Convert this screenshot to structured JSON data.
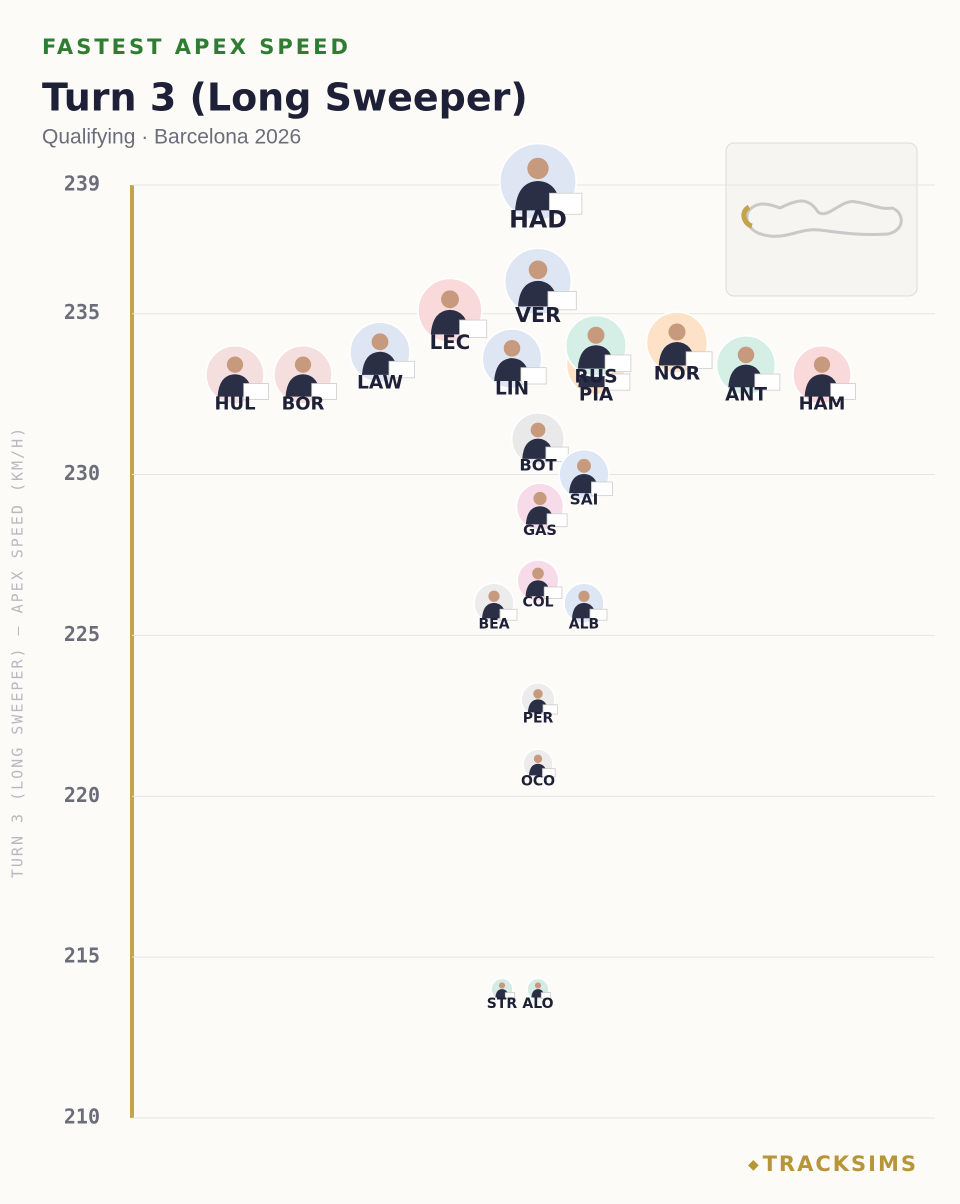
{
  "chart_data": {
    "type": "scatter",
    "kicker": "FASTEST APEX SPEED",
    "title": "Turn 3 (Long Sweeper)",
    "subtitle": "Qualifying · Barcelona 2026",
    "y_label": "TURN 3 (LONG SWEEPER) — APEX SPEED (KM/H)",
    "brand": "TRACKSIMS",
    "categories": [
      "HAD",
      "VER",
      "LEC",
      "LAW",
      "LIN",
      "PIA",
      "RUS",
      "NOR",
      "ANT",
      "HAM",
      "HUL",
      "BOR",
      "BOT",
      "SAI",
      "GAS",
      "COL",
      "BEA",
      "ALB",
      "PER",
      "OCO",
      "STR",
      "ALO"
    ],
    "values": [
      239.1,
      236.0,
      235.1,
      233.8,
      233.6,
      233.4,
      234.0,
      234.1,
      233.4,
      233.1,
      233.1,
      233.1,
      231.1,
      230.0,
      229.0,
      226.7,
      226.0,
      226.0,
      223.0,
      221.0,
      214.0,
      214.0
    ],
    "colors": [
      "#dfe6f3",
      "#dfe6f3",
      "#f9d9d9",
      "#dfe6f3",
      "#dfe6f3",
      "#fde2c8",
      "#d6efe6",
      "#fde2c8",
      "#d6efe6",
      "#f9d9d9",
      "#f5dede",
      "#f5dede",
      "#e9e9e9",
      "#dde6f4",
      "#f8dbe8",
      "#f8dbe8",
      "#ececec",
      "#dde6f4",
      "#ececec",
      "#ececec",
      "#d5ece4",
      "#d5ece4"
    ],
    "ylim": [
      210,
      239
    ],
    "yticks": [
      210,
      215,
      220,
      225,
      230,
      235,
      239
    ],
    "grid": true
  }
}
